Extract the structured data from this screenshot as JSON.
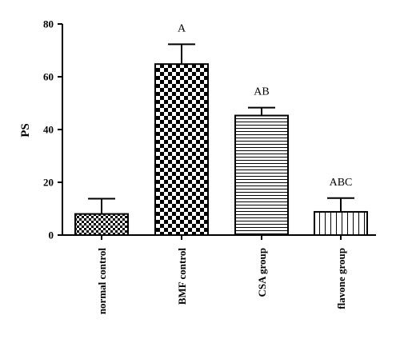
{
  "chart_data": {
    "type": "bar",
    "title": "",
    "xlabel": "",
    "ylabel": "PS",
    "ylim": [
      0,
      80
    ],
    "yticks": [
      0,
      20,
      40,
      60,
      80
    ],
    "grid": false,
    "categories": [
      "normal control",
      "BMF control",
      "CSA group",
      "flavone group"
    ],
    "values": [
      8,
      64.8,
      45.3,
      8.8
    ],
    "error_upper": [
      5.8,
      7.5,
      3,
      5.2
    ],
    "annotations": [
      "",
      "A",
      "AB",
      "ABC"
    ],
    "patterns": [
      "fine-checker",
      "large-checker",
      "horizontal-lines",
      "vertical-lines"
    ],
    "bar_fill": "#ffffff",
    "pattern_color": "#000000"
  }
}
